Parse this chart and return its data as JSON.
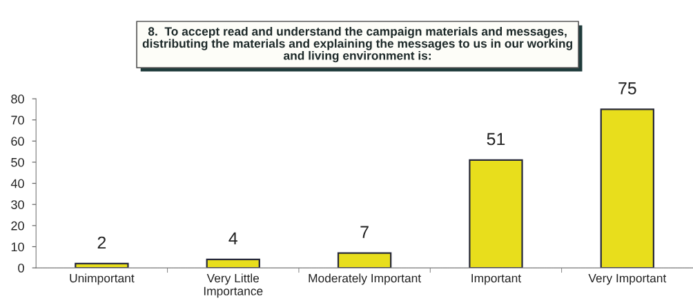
{
  "chart_data": {
    "type": "bar",
    "title": "8.  To accept read and understand the campaign materials and messages,\ndistributing the materials and explaining the messages to us in our working\nand living environment is:",
    "categories": [
      "Unimportant",
      "Very Little\nImportance",
      "Moderately Important",
      "Important",
      "Very Important"
    ],
    "values": [
      2,
      4,
      7,
      51,
      75
    ],
    "color": "#e8de1c",
    "ylim": [
      0,
      80
    ],
    "yticks": [
      0,
      10,
      20,
      30,
      40,
      50,
      60,
      70,
      80
    ],
    "data_labels": true,
    "grid": false,
    "legend": false
  }
}
